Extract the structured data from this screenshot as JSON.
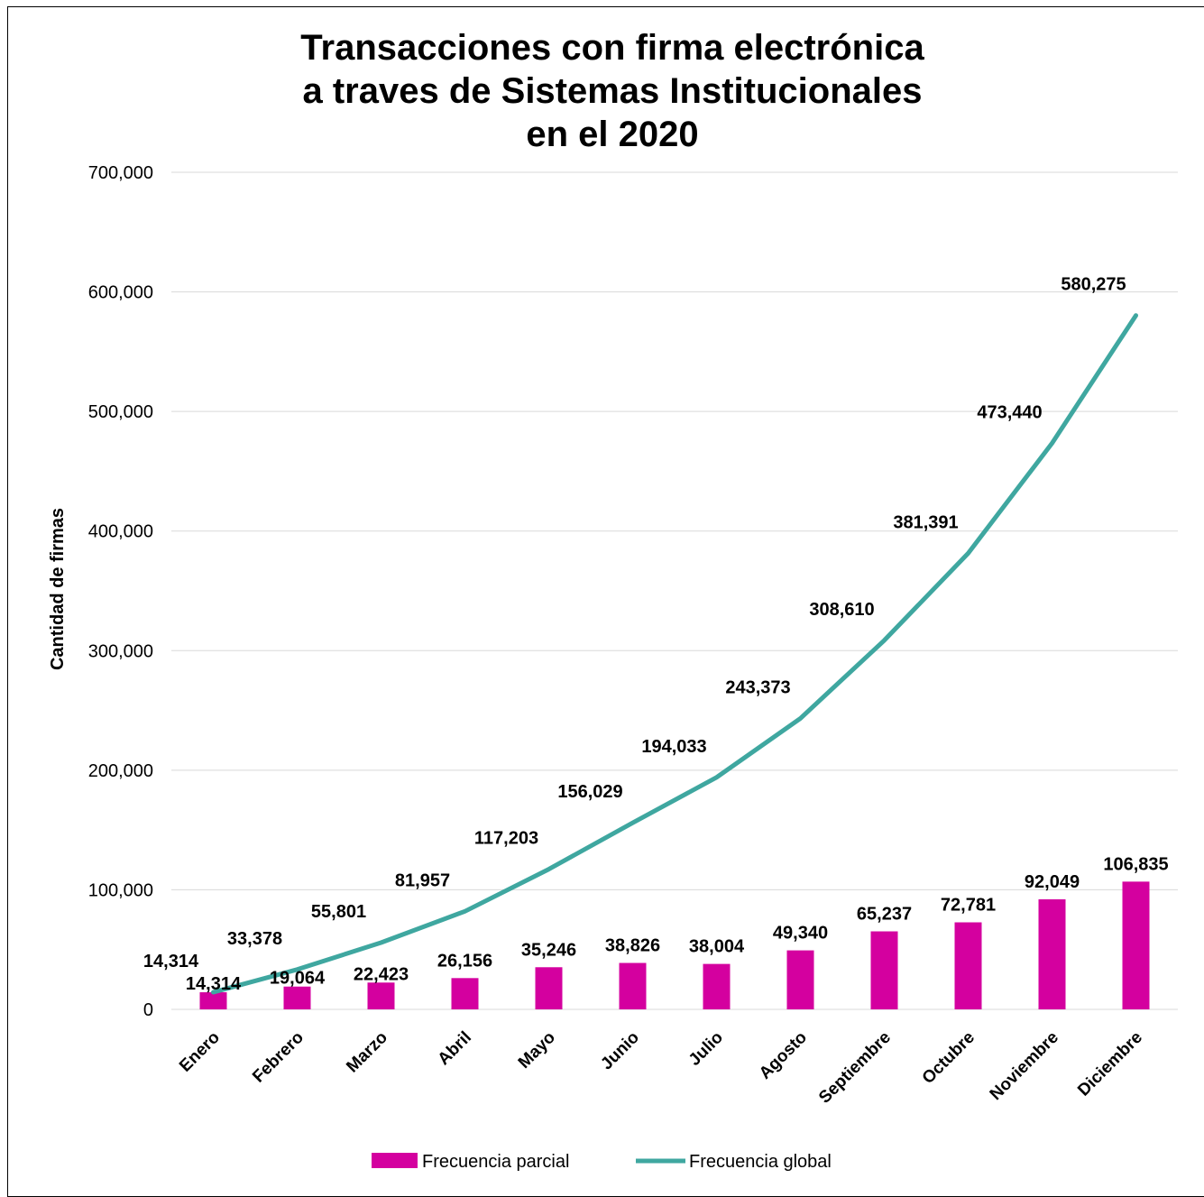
{
  "chart_data": {
    "type": "bar+line",
    "title_lines": [
      "Transacciones con firma electrónica",
      "a traves de Sistemas Institucionales",
      "en el 2020"
    ],
    "xlabel": "",
    "ylabel": "Cantidad de firmas",
    "ylim": [
      0,
      700000
    ],
    "yticks": [
      "0",
      "100,000",
      "200,000",
      "300,000",
      "400,000",
      "500,000",
      "600,000",
      "700,000"
    ],
    "grid": true,
    "legend_position": "bottom",
    "categories": [
      "Enero",
      "Febrero",
      "Marzo",
      "Abril",
      "Mayo",
      "Junio",
      "Julio",
      "Agosto",
      "Septiembre",
      "Octubre",
      "Noviembre",
      "Diciembre"
    ],
    "series": [
      {
        "name": "Frecuencia parcial",
        "type": "bar",
        "color": "#d4009f",
        "values": [
          14314,
          19064,
          22423,
          26156,
          35246,
          38826,
          38004,
          49340,
          65237,
          72781,
          92049,
          106835
        ],
        "labels": [
          "14,314",
          "19,064",
          "22,423",
          "26,156",
          "35,246",
          "38,826",
          "38,004",
          "49,340",
          "65,237",
          "72,781",
          "92,049",
          "106,835"
        ]
      },
      {
        "name": "Frecuencia global",
        "type": "line",
        "color": "#3fa7a0",
        "values": [
          14314,
          33378,
          55801,
          81957,
          117203,
          156029,
          194033,
          243373,
          308610,
          381391,
          473440,
          580275
        ],
        "labels": [
          "14,314",
          "33,378",
          "55,801",
          "81,957",
          "117,203",
          "156,029",
          "194,033",
          "243,373",
          "308,610",
          "381,391",
          "473,440",
          "580,275"
        ]
      }
    ]
  }
}
